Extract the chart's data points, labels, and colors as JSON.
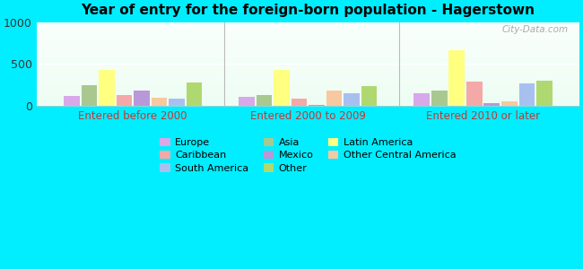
{
  "title": "Year of entry for the foreign-born population - Hagerstown",
  "groups": [
    "Entered before 2000",
    "Entered 2000 to 2009",
    "Entered 2010 or later"
  ],
  "categories": [
    "Europe",
    "Asia",
    "Latin America",
    "Caribbean",
    "Mexico",
    "Other Central America",
    "South America",
    "Other"
  ],
  "colors": [
    "#d8a8e8",
    "#a8c890",
    "#ffff80",
    "#f4a8a8",
    "#b898d8",
    "#f8c8a0",
    "#a8c0f0",
    "#b0d870"
  ],
  "values": {
    "Entered before 2000": [
      110,
      240,
      420,
      120,
      180,
      90,
      80,
      270
    ],
    "Entered 2000 to 2009": [
      100,
      120,
      420,
      80,
      10,
      180,
      150,
      230
    ],
    "Entered 2010 or later": [
      150,
      180,
      660,
      290,
      30,
      50,
      260,
      300
    ]
  },
  "ylim": [
    0,
    1000
  ],
  "yticks": [
    0,
    500,
    1000
  ],
  "bg_outer": "#00eeff",
  "watermark": "City-Data.com",
  "legend_order": [
    0,
    3,
    6,
    1,
    4,
    7,
    2,
    5
  ]
}
